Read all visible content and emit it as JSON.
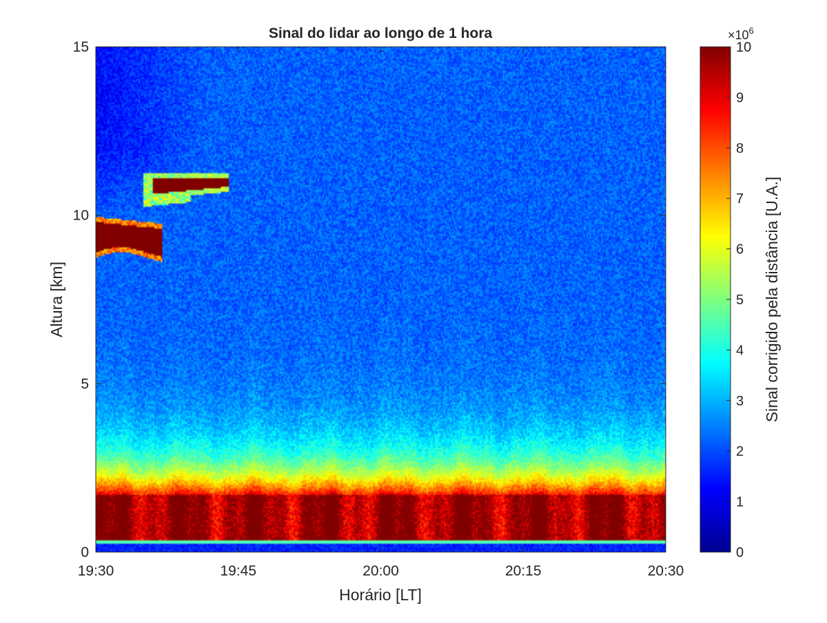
{
  "chart_data": {
    "type": "heatmap",
    "title": "Sinal do lidar ao longo de 1 hora",
    "xlabel": "Horário [LT]",
    "ylabel": "Altura [km]",
    "x_range_minutes": [
      0,
      60
    ],
    "x_ticks": [
      {
        "minute": 0,
        "label": "19:30"
      },
      {
        "minute": 15,
        "label": "19:45"
      },
      {
        "minute": 30,
        "label": "20:00"
      },
      {
        "minute": 45,
        "label": "20:15"
      },
      {
        "minute": 60,
        "label": "20:30"
      }
    ],
    "ylim": [
      0,
      15
    ],
    "y_ticks": [
      0,
      5,
      10,
      15
    ],
    "grid": false,
    "colormap": "jet",
    "colorbar": {
      "label": "Sinal corrigido pela distância [U.A.]",
      "range": [
        0,
        10
      ],
      "multiplier_base": "×10",
      "multiplier_exp": "6",
      "ticks": [
        0,
        1,
        2,
        3,
        4,
        5,
        6,
        7,
        8,
        9,
        10
      ]
    },
    "features": [
      {
        "name": "cirrus-lower",
        "minute_start": 0,
        "minute_end": 7,
        "altitude_km": [
          8.9,
          9.8
        ],
        "signal": 10
      },
      {
        "name": "cirrus-upper",
        "minute_start": 5,
        "minute_end": 14,
        "altitude_km": [
          10.6,
          11.1
        ],
        "signal": 10
      },
      {
        "name": "boundary-layer",
        "altitude_km": [
          0.3,
          1.7
        ],
        "signal": 10
      }
    ]
  }
}
